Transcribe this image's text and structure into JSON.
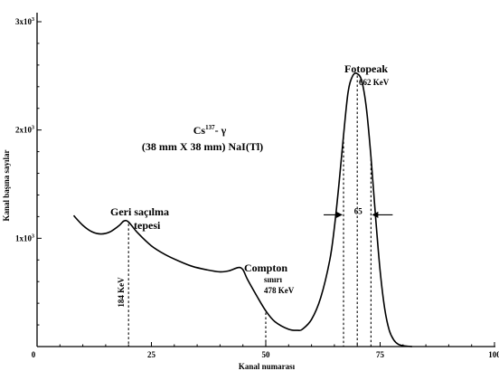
{
  "chart_data": {
    "type": "line",
    "title_line1_main": "Cs",
    "title_line1_sup": "137",
    "title_line1_rest": "- γ",
    "title_line2": "(38 mm X 38 mm) NaI(Tl)",
    "xlabel": "Kanal numarası",
    "ylabel": "Kanal başına sayılar",
    "xlim": [
      0,
      100
    ],
    "ylim": [
      0,
      3000
    ],
    "x_ticks": [
      {
        "value": 0,
        "label": "0"
      },
      {
        "value": 25,
        "label": "25"
      },
      {
        "value": 50,
        "label": "50"
      },
      {
        "value": 75,
        "label": "75"
      },
      {
        "value": 100,
        "label": "100"
      }
    ],
    "y_ticks": [
      {
        "value": 1000,
        "base": "1x10",
        "exp": "3"
      },
      {
        "value": 2000,
        "base": "2x10",
        "exp": "3"
      },
      {
        "value": 3000,
        "base": "3x10",
        "exp": "3"
      }
    ],
    "series": [
      {
        "x": [
          8,
          10,
          12,
          14,
          16,
          18,
          19,
          20,
          22,
          25,
          28,
          31,
          34,
          37,
          40,
          42,
          44,
          45,
          46,
          48,
          50,
          52,
          55,
          57,
          58,
          60,
          62,
          64,
          65,
          66,
          67,
          68,
          69,
          70,
          71,
          72,
          73,
          74,
          75,
          76,
          77,
          78,
          79,
          80,
          81,
          82
        ],
        "y": [
          1210,
          1120,
          1060,
          1040,
          1060,
          1120,
          1160,
          1150,
          1050,
          930,
          850,
          790,
          740,
          710,
          690,
          700,
          730,
          710,
          620,
          470,
          330,
          230,
          160,
          150,
          160,
          250,
          450,
          800,
          1100,
          1500,
          1950,
          2350,
          2500,
          2520,
          2450,
          2200,
          1750,
          1200,
          700,
          350,
          150,
          60,
          20,
          8,
          3,
          0
        ]
      }
    ],
    "annotations": {
      "backscatter_label_1": "Geri saçılma",
      "backscatter_label_2": "tepesi",
      "backscatter_energy": "184 KeV",
      "backscatter_x": 20,
      "compton_label_1": "Compton",
      "compton_label_2": "sınırı",
      "compton_energy": "478 KeV",
      "compton_x": 50,
      "photopeak_label": "Fotopeak",
      "photopeak_energy": "662 KeV",
      "photopeak_x": 70,
      "fwhm_left_x": 67,
      "fwhm_right_x": 73,
      "fwhm_level": 1250,
      "fwhm_label": "65"
    }
  }
}
